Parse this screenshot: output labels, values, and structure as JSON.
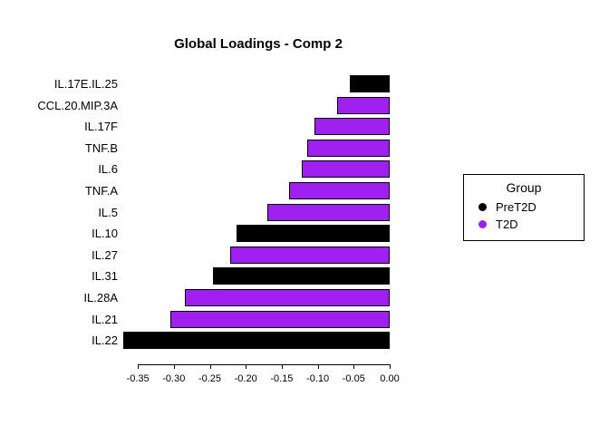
{
  "chart_data": {
    "type": "bar",
    "orientation": "horizontal",
    "title": "Global Loadings - Comp 2",
    "categories": [
      "IL.17E.IL.25",
      "CCL.20.MIP.3A",
      "IL.17F",
      "TNF.B",
      "IL.6",
      "TNF.A",
      "IL.5",
      "IL.10",
      "IL.27",
      "IL.31",
      "IL.28A",
      "IL.21",
      "IL.22"
    ],
    "values": [
      -0.055,
      -0.073,
      -0.105,
      -0.115,
      -0.122,
      -0.14,
      -0.17,
      -0.213,
      -0.222,
      -0.245,
      -0.285,
      -0.305,
      -0.37
    ],
    "groups": [
      "PreT2D",
      "T2D",
      "T2D",
      "T2D",
      "T2D",
      "T2D",
      "T2D",
      "PreT2D",
      "T2D",
      "PreT2D",
      "T2D",
      "T2D",
      "PreT2D"
    ],
    "group_colors": {
      "PreT2D": "#000000",
      "T2D": "#A020F0"
    },
    "xlim": [
      -0.35,
      0.0
    ],
    "x_ticks": [
      -0.35,
      -0.3,
      -0.25,
      -0.2,
      -0.15,
      -0.1,
      -0.05,
      0.0
    ],
    "x_tick_labels": [
      "-0.35",
      "-0.30",
      "-0.25",
      "-0.20",
      "-0.15",
      "-0.10",
      "-0.05",
      "0.00"
    ],
    "grid": false,
    "legend": {
      "title": "Group",
      "position": "right",
      "items": [
        {
          "label": "PreT2D",
          "color": "#000000"
        },
        {
          "label": "T2D",
          "color": "#A020F0"
        }
      ]
    }
  }
}
